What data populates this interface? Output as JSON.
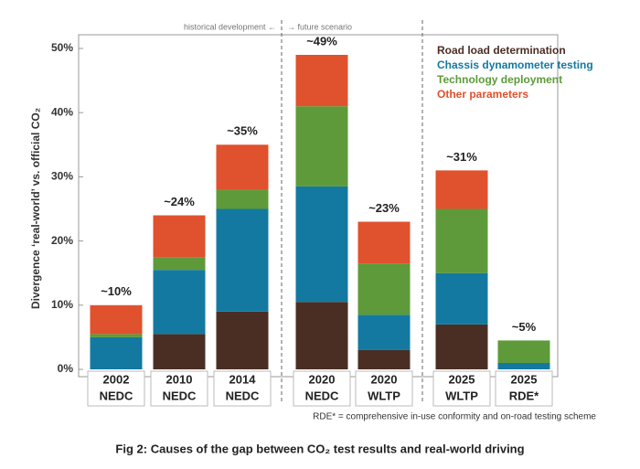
{
  "chart_data": {
    "type": "stacked-bar",
    "title": "Fig 2: Causes of the gap between CO₂ test results and real-world driving",
    "y_label": "Divergence ‘real-world’ vs. official CO₂",
    "annotations": [
      "historical development ←",
      "→ future scenario"
    ],
    "footnote": "RDE* = comprehensive in-use conformity and on-road testing scheme",
    "categories": [
      [
        "2002",
        "NEDC"
      ],
      [
        "2010",
        "NEDC"
      ],
      [
        "2014",
        "NEDC"
      ],
      [
        "2020",
        "NEDC"
      ],
      [
        "2020",
        "WLTP"
      ],
      [
        "2025",
        "WLTP"
      ],
      [
        "2025",
        "RDE*"
      ]
    ],
    "series": [
      {
        "name": "Road load determination",
        "color": "#4a2e24",
        "values": [
          0,
          5.5,
          9,
          10.5,
          3,
          7,
          0
        ]
      },
      {
        "name": "Chassis dynamometer testing",
        "color": "#1379a0",
        "values": [
          5,
          10,
          16,
          18,
          5.5,
          8,
          1
        ]
      },
      {
        "name": "Technology deployment",
        "color": "#5e9a3a",
        "values": [
          0.5,
          2,
          3,
          12.5,
          8,
          10,
          3.5
        ]
      },
      {
        "name": "Other parameters",
        "color": "#e0512d",
        "values": [
          4.5,
          6.5,
          7,
          8,
          6.5,
          6,
          0
        ]
      }
    ],
    "totals": {
      "values": [
        10,
        24,
        35,
        49,
        23,
        31,
        5
      ],
      "value_labels": [
        "~10%",
        "~24%",
        "~35%",
        "~49%",
        "~23%",
        "~31%",
        "~5%"
      ]
    },
    "ylim": [
      0,
      50
    ],
    "yticks": [
      {
        "value": 0,
        "label": "0%"
      },
      {
        "value": 10,
        "label": "10%"
      },
      {
        "value": 20,
        "label": "20%"
      },
      {
        "value": 30,
        "label": "30%"
      },
      {
        "value": 40,
        "label": "40%"
      },
      {
        "value": 50,
        "label": "50%"
      }
    ],
    "legend": "top-right"
  }
}
